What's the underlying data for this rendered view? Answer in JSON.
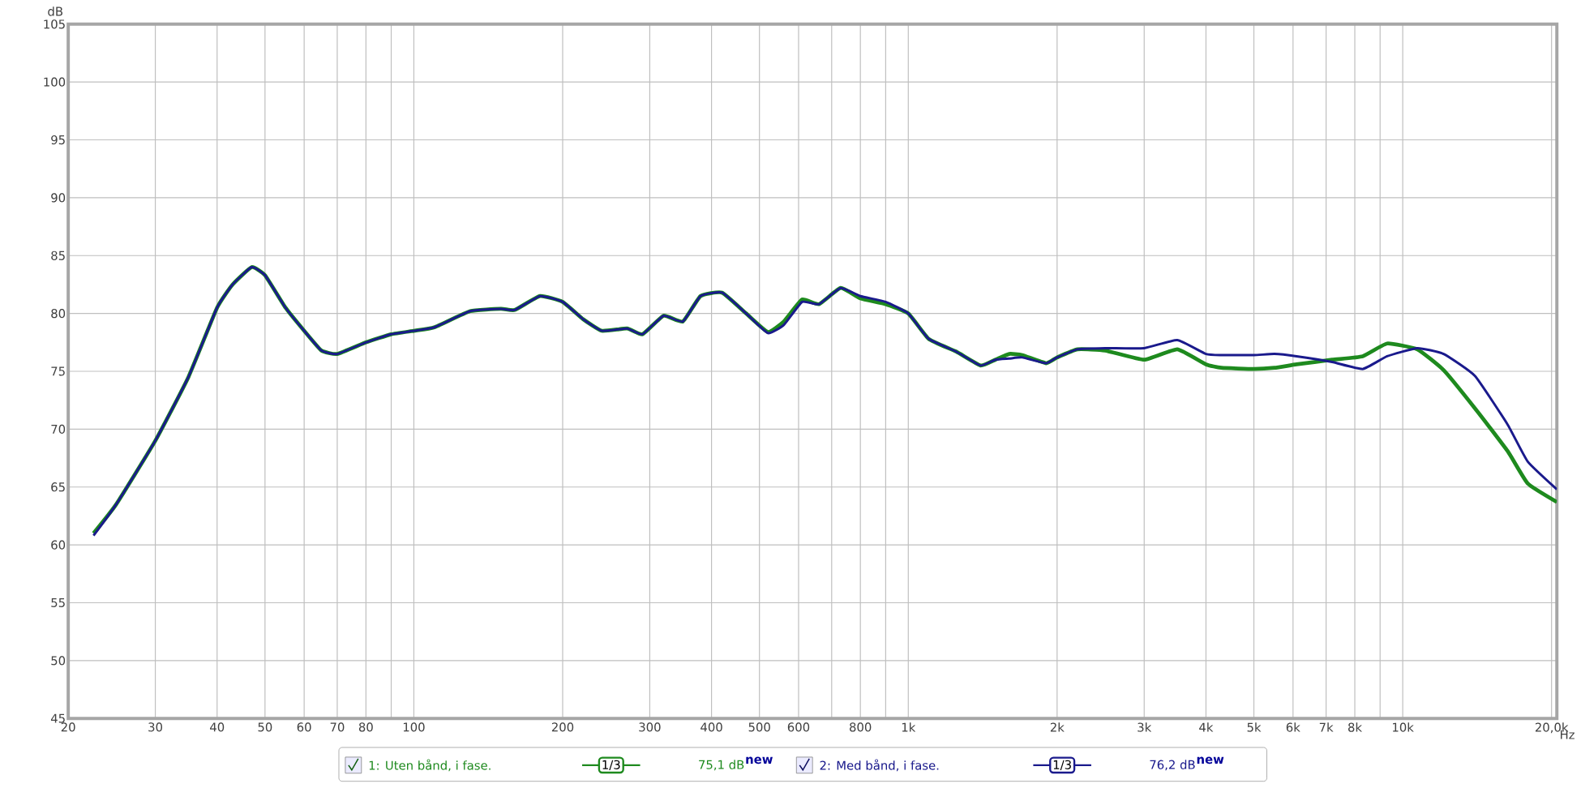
{
  "chart_data": {
    "type": "line",
    "xlabel": "Hz",
    "ylabel": "dB",
    "x": [
      22.5,
      25,
      30,
      35,
      40,
      43,
      47,
      50,
      55,
      60,
      65,
      70,
      80,
      90,
      100,
      110,
      130,
      150,
      160,
      180,
      200,
      220,
      240,
      270,
      290,
      320,
      350,
      380,
      420,
      470,
      520,
      560,
      610,
      660,
      730,
      800,
      900,
      1000,
      1100,
      1250,
      1400,
      1500,
      1600,
      1700,
      1900,
      2000,
      2200,
      2500,
      3000,
      3500,
      4000,
      4300,
      5000,
      5500,
      6100,
      7200,
      8300,
      9300,
      10700,
      12100,
      14000,
      16300,
      17900,
      20500
    ],
    "series": [
      {
        "name": "1: Uten bånd, i fase.",
        "color": "#1e8a1e",
        "values": [
          61.0,
          63.5,
          69,
          74.5,
          80.5,
          82.5,
          84,
          83.3,
          80.5,
          78.5,
          76.8,
          76.5,
          77.5,
          78.2,
          78.5,
          78.8,
          80.2,
          80.4,
          80.3,
          81.5,
          81,
          79.5,
          78.5,
          78.7,
          78.2,
          79.8,
          79.3,
          81.5,
          81.8,
          80,
          78.4,
          79.3,
          81.2,
          80.8,
          82.2,
          81.3,
          80.8,
          80,
          77.8,
          76.7,
          75.5,
          76,
          76.5,
          76.4,
          75.7,
          76.2,
          76.9,
          76.8,
          76.0,
          76.9,
          75.6,
          75.3,
          75.2,
          75.3,
          75.6,
          76.0,
          76.3,
          77.4,
          76.9,
          75.1,
          71.8,
          68.1,
          65.3,
          63.7
        ]
      },
      {
        "name": "2: Med bånd, i fase.",
        "color": "#1a1a8c",
        "values": [
          60.8,
          63.5,
          69,
          74.5,
          80.5,
          82.5,
          84,
          83.3,
          80.5,
          78.5,
          76.8,
          76.5,
          77.5,
          78.2,
          78.5,
          78.8,
          80.2,
          80.4,
          80.3,
          81.5,
          81,
          79.5,
          78.5,
          78.7,
          78.2,
          79.8,
          79.3,
          81.5,
          81.8,
          80,
          78.3,
          79,
          81,
          80.8,
          82.2,
          81.5,
          81,
          80,
          77.8,
          76.7,
          75.5,
          76,
          76.1,
          76.2,
          75.7,
          76.2,
          76.9,
          77,
          77,
          77.7,
          76.5,
          76.4,
          76.4,
          76.5,
          76.3,
          75.8,
          75.2,
          76.3,
          77,
          76.5,
          74.6,
          70.4,
          67.2,
          64.8
        ]
      }
    ],
    "annotations": [
      "1/3",
      "75,1 dB",
      "new",
      "1/3",
      "76,2 dB",
      "new"
    ],
    "log": "x",
    "xlim": [
      20,
      20500
    ],
    "ylim": [
      45,
      105
    ],
    "xticks": [
      20,
      30,
      40,
      50,
      60,
      70,
      80,
      {
        "value": 90,
        "label": null
      },
      100,
      200,
      300,
      400,
      500,
      600,
      {
        "value": 700,
        "label": null
      },
      800,
      {
        "value": 900,
        "label": null
      },
      {
        "value": 1000,
        "label": "1k"
      },
      {
        "value": 2000,
        "label": "2k"
      },
      {
        "value": 3000,
        "label": "3k"
      },
      {
        "value": 4000,
        "label": "4k"
      },
      {
        "value": 5000,
        "label": "5k"
      },
      {
        "value": 6000,
        "label": "6k"
      },
      {
        "value": 7000,
        "label": "7k"
      },
      {
        "value": 8000,
        "label": "8k"
      },
      {
        "value": 9000,
        "label": null
      },
      {
        "value": 10000,
        "label": "10k"
      },
      {
        "value": 20000,
        "label": "20,0k"
      }
    ],
    "yticks": [
      45,
      50,
      55,
      60,
      65,
      70,
      75,
      80,
      85,
      90,
      95,
      100,
      105
    ],
    "grid": true,
    "legend": "bottom",
    "marker": "none",
    "line_style": "solid"
  }
}
